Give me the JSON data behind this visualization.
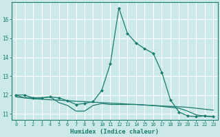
{
  "xlabel": "Humidex (Indice chaleur)",
  "background_color": "#cce9e9",
  "grid_color": "#ffffff",
  "line_color": "#1a7a6e",
  "xlim": [
    -0.5,
    23.5
  ],
  "ylim": [
    10.7,
    16.9
  ],
  "xticks": [
    0,
    1,
    2,
    3,
    4,
    5,
    6,
    7,
    8,
    9,
    10,
    11,
    12,
    13,
    14,
    15,
    16,
    17,
    18,
    19,
    20,
    21,
    22,
    23
  ],
  "yticks": [
    11,
    12,
    13,
    14,
    15,
    16
  ],
  "peak_x": [
    0,
    1,
    2,
    3,
    4,
    5,
    6,
    7,
    8,
    9,
    10,
    11,
    12,
    13,
    14,
    15,
    16,
    17,
    18,
    19,
    20,
    21,
    22,
    23
  ],
  "peak_y": [
    12.0,
    12.0,
    11.85,
    11.85,
    11.9,
    11.85,
    11.7,
    11.5,
    11.55,
    11.65,
    12.25,
    13.65,
    16.6,
    15.25,
    14.75,
    14.45,
    14.2,
    13.2,
    11.75,
    11.1,
    10.9,
    10.85,
    10.9,
    10.85
  ],
  "flat_x": [
    0,
    1,
    2,
    3,
    4,
    5,
    6,
    7,
    8,
    9,
    10,
    11,
    12,
    13,
    14,
    15,
    16,
    17,
    18,
    19,
    20,
    21,
    22,
    23
  ],
  "flat_y": [
    11.9,
    11.85,
    11.8,
    11.78,
    11.75,
    11.73,
    11.7,
    11.67,
    11.65,
    11.62,
    11.6,
    11.57,
    11.55,
    11.52,
    11.5,
    11.47,
    11.45,
    11.42,
    11.4,
    11.38,
    11.35,
    11.3,
    11.25,
    11.2
  ],
  "mid_x": [
    0,
    1,
    2,
    3,
    4,
    5,
    6,
    7,
    8,
    9,
    10,
    11,
    12,
    13,
    14,
    15,
    16,
    17,
    18,
    19,
    20,
    21,
    22,
    23
  ],
  "mid_y": [
    12.0,
    11.85,
    11.85,
    11.85,
    11.9,
    11.6,
    11.45,
    11.15,
    11.15,
    11.45,
    11.55,
    11.5,
    11.5,
    11.5,
    11.5,
    11.47,
    11.44,
    11.4,
    11.35,
    11.3,
    11.15,
    10.95,
    10.88,
    10.85
  ]
}
